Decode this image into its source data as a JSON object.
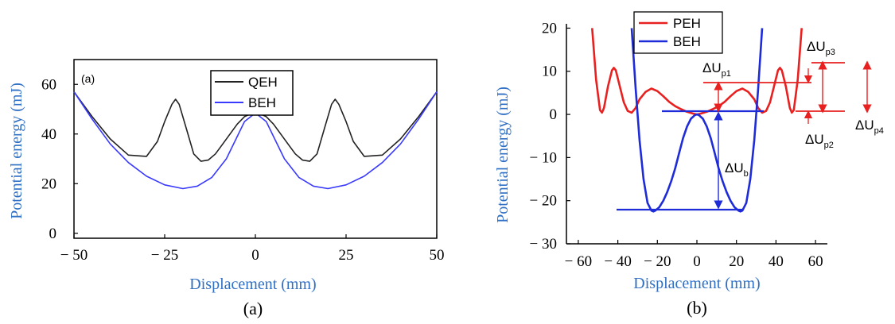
{
  "chart_data": [
    {
      "type": "line",
      "panel_tag": "(a)",
      "caption": "(a)",
      "xlabel": "Displacement (mm)",
      "ylabel": "Potential energy (mJ)",
      "xlim": [
        -50,
        50
      ],
      "ylim": [
        -2,
        70
      ],
      "xticks": [
        -50,
        -25,
        0,
        25,
        50
      ],
      "xtick_labels": [
        "− 50",
        "− 25",
        "0",
        "25",
        "50"
      ],
      "yticks": [
        0,
        20,
        40,
        60
      ],
      "ytick_labels": [
        "0",
        "20",
        "40",
        "60"
      ],
      "legend_position": "top-center",
      "series": [
        {
          "name": "QEH",
          "color": "#222222",
          "x": [
            -50,
            -45,
            -40,
            -35,
            -30,
            -27,
            -25,
            -23,
            -22,
            -21,
            -19,
            -17,
            -15,
            -13,
            -11,
            -9,
            -7,
            -5,
            -3,
            0,
            3,
            5,
            7,
            9,
            11,
            13,
            15,
            17,
            19,
            21,
            22,
            23,
            25,
            27,
            30,
            35,
            40,
            45,
            50
          ],
          "y": [
            57,
            47,
            38,
            31.5,
            31,
            37,
            45,
            52,
            54,
            52,
            42,
            32,
            29,
            29.5,
            32,
            36,
            40,
            44,
            47,
            49,
            47,
            44,
            40,
            36,
            32,
            29.5,
            29,
            32,
            42,
            52,
            54,
            52,
            45,
            37,
            31,
            31.5,
            38,
            47,
            57
          ]
        },
        {
          "name": "BEH",
          "color": "#3a3aff",
          "x": [
            -50,
            -45,
            -40,
            -35,
            -30,
            -25,
            -20,
            -16,
            -12,
            -8,
            -5,
            -3,
            0,
            3,
            5,
            8,
            12,
            16,
            20,
            25,
            30,
            35,
            40,
            45,
            50
          ],
          "y": [
            57,
            46,
            36,
            28.5,
            23,
            19.5,
            18,
            19,
            22.5,
            30,
            39,
            45,
            48.5,
            45,
            39,
            30,
            22.5,
            19,
            18,
            19.5,
            23,
            28.5,
            36,
            46,
            57
          ]
        }
      ]
    },
    {
      "type": "line",
      "caption": "(b)",
      "xlabel": "Displacement (mm)",
      "ylabel": "Potential energy (mJ)",
      "xlim": [
        -66,
        66
      ],
      "ylim": [
        -30,
        21
      ],
      "xticks": [
        -60,
        -40,
        -20,
        0,
        20,
        40,
        60
      ],
      "xtick_labels": [
        "− 60",
        "− 40",
        "− 20",
        "0",
        "20",
        "40",
        "60"
      ],
      "yticks": [
        -30,
        -20,
        -10,
        0,
        10,
        20
      ],
      "ytick_labels": [
        "− 30",
        "− 20",
        "− 10",
        "0",
        "10",
        "20"
      ],
      "legend_position": "top-left",
      "series": [
        {
          "name": "PEH",
          "color": "#e82020",
          "x": [
            -53,
            -51,
            -49,
            -48,
            -47,
            -45,
            -43,
            -42,
            -41,
            -39,
            -37,
            -35,
            -33,
            -31,
            -29,
            -26,
            -23,
            -20,
            -17,
            -14,
            -11,
            -8,
            -5,
            -2,
            0,
            2,
            5,
            8,
            11,
            14,
            17,
            20,
            23,
            26,
            29,
            31,
            33,
            35,
            37,
            39,
            41,
            42,
            43,
            45,
            47,
            48,
            49,
            51,
            53
          ],
          "y": [
            20,
            8,
            1,
            0.4,
            1.5,
            6.5,
            10.2,
            10.8,
            10.2,
            6.5,
            2.8,
            0.8,
            0.4,
            1.5,
            3.5,
            5.2,
            6,
            5.4,
            4.2,
            2.9,
            1.9,
            1.2,
            0.6,
            0.2,
            0,
            0.2,
            0.6,
            1.2,
            1.9,
            2.9,
            4.2,
            5.4,
            6,
            5.2,
            3.5,
            1.5,
            0.4,
            0.8,
            2.8,
            6.5,
            10.2,
            10.8,
            10.2,
            6.5,
            1.5,
            0.4,
            1,
            8,
            20
          ]
        },
        {
          "name": "BEH",
          "color": "#1e2bd8",
          "x": [
            -33,
            -31,
            -29,
            -27,
            -25,
            -23,
            -22,
            -21,
            -19,
            -17,
            -15,
            -13,
            -11,
            -9,
            -7,
            -5,
            -3,
            -1,
            0,
            1,
            3,
            5,
            7,
            9,
            11,
            13,
            15,
            17,
            19,
            21,
            22,
            23,
            25,
            27,
            29,
            31,
            33
          ],
          "y": [
            20,
            6,
            -6,
            -15,
            -20.5,
            -22.3,
            -22.5,
            -22.3,
            -21.5,
            -20,
            -18,
            -15.5,
            -12.5,
            -9,
            -5.5,
            -2.8,
            -1,
            -0.15,
            0,
            -0.15,
            -1,
            -2.8,
            -5.5,
            -9,
            -12.5,
            -15.5,
            -18,
            -20,
            -21.5,
            -22.3,
            -22.5,
            -22.3,
            -20.5,
            -15,
            -6,
            6,
            20
          ]
        }
      ],
      "annotations": [
        {
          "label": "ΔU",
          "sub": "p1"
        },
        {
          "label": "ΔU",
          "sub": "p2"
        },
        {
          "label": "ΔU",
          "sub": "p3"
        },
        {
          "label": "ΔU",
          "sub": "p4"
        },
        {
          "label": "ΔU",
          "sub": "b"
        }
      ]
    }
  ]
}
